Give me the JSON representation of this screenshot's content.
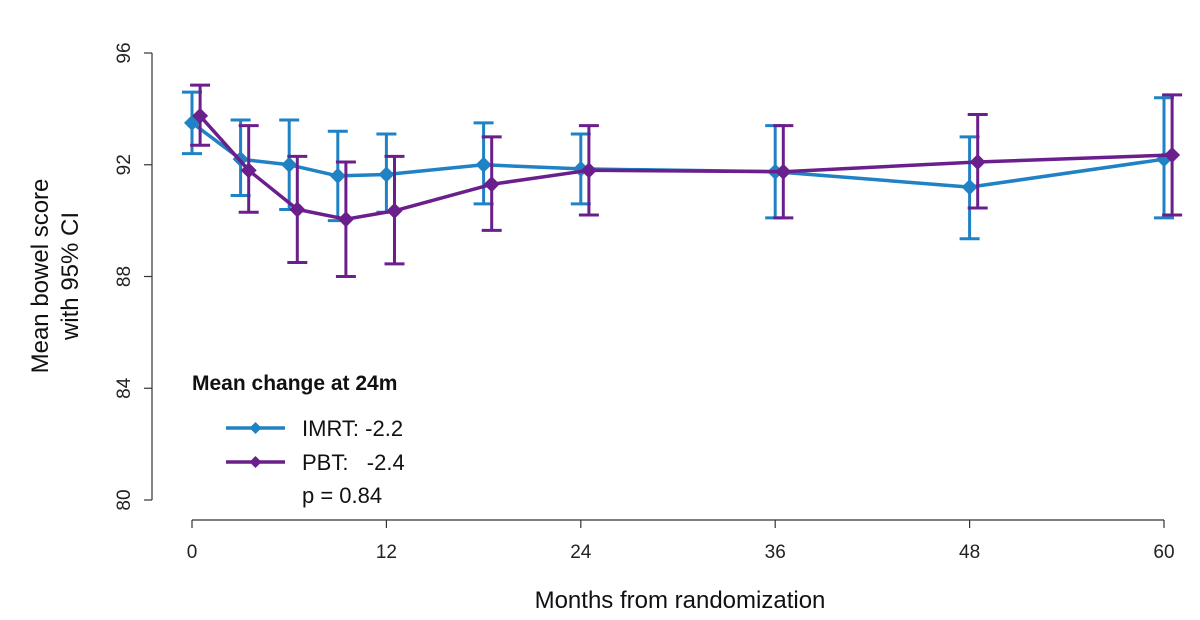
{
  "chart_data": {
    "type": "line",
    "xlabel": "Months from randomization",
    "ylabel_lines": [
      "Mean bowel score",
      "with 95% CI"
    ],
    "xlim": [
      0,
      60
    ],
    "ylim": [
      80,
      96
    ],
    "x_ticks": [
      0,
      12,
      24,
      36,
      48,
      60
    ],
    "y_ticks": [
      80,
      84,
      88,
      92,
      96
    ],
    "grid": false,
    "legend_position": "bottom-left",
    "legend": {
      "title": "Mean change at 24m",
      "entries": [
        "IMRT: -2.2",
        "PBT:   -2.4"
      ],
      "note": "p = 0.84"
    },
    "series": [
      {
        "name": "IMRT",
        "color": "#1f82c4",
        "x": [
          0,
          3,
          6,
          9,
          12,
          18,
          24,
          36,
          48,
          60
        ],
        "y": [
          93.5,
          92.2,
          92.0,
          91.6,
          91.65,
          92.0,
          91.85,
          91.75,
          91.2,
          92.2
        ],
        "ci_low": [
          92.4,
          90.9,
          90.4,
          90.0,
          90.3,
          90.6,
          90.6,
          90.1,
          89.35,
          90.1
        ],
        "ci_high": [
          94.6,
          93.6,
          93.6,
          93.2,
          93.1,
          93.5,
          93.1,
          93.4,
          93.0,
          94.4
        ]
      },
      {
        "name": "PBT",
        "color": "#6b1f8c",
        "x": [
          0.5,
          3.5,
          6.5,
          9.5,
          12.5,
          18.5,
          24.5,
          36.5,
          48.5,
          60.5
        ],
        "y": [
          93.75,
          91.8,
          90.4,
          90.05,
          90.35,
          91.3,
          91.8,
          91.75,
          92.1,
          92.35
        ],
        "ci_low": [
          92.7,
          90.3,
          88.5,
          88.0,
          88.45,
          89.65,
          90.2,
          90.1,
          90.45,
          90.2
        ],
        "ci_high": [
          94.85,
          93.4,
          92.3,
          92.1,
          92.3,
          93.0,
          93.4,
          93.4,
          93.8,
          94.5
        ]
      }
    ]
  }
}
